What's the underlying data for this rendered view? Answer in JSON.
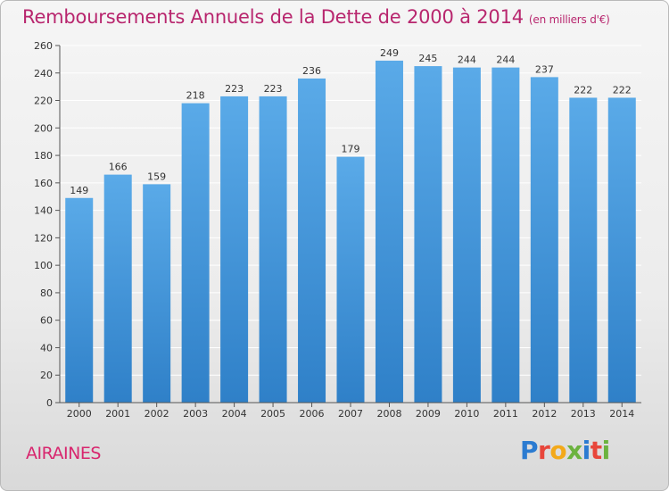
{
  "header": {
    "title": "Remboursements Annuels de la Dette de 2000 à 2014",
    "subtitle": "(en milliers d'€)"
  },
  "footer": {
    "city": "AIRAINES",
    "logo": [
      "P",
      "r",
      "o",
      "x",
      "i",
      "t",
      "i"
    ],
    "logo_colors": [
      "#2b7bd1",
      "#e8463b",
      "#f3a91a",
      "#6cb33f",
      "#2b7bd1",
      "#e8463b",
      "#6cb33f"
    ]
  },
  "colors": {
    "bar": "#5aaae8",
    "bar_dark": "#2f80c8",
    "axis": "#555555",
    "grid": "#ffffff",
    "text": "#333333"
  },
  "chart_data": {
    "type": "bar",
    "title": "Remboursements Annuels de la Dette de 2000 à 2014",
    "ylabel": "en milliers d'€",
    "xlabel": "",
    "categories": [
      "2000",
      "2001",
      "2002",
      "2003",
      "2004",
      "2005",
      "2006",
      "2007",
      "2008",
      "2009",
      "2010",
      "2011",
      "2012",
      "2013",
      "2014"
    ],
    "values": [
      149,
      166,
      159,
      218,
      223,
      223,
      236,
      179,
      249,
      245,
      244,
      244,
      237,
      222,
      222
    ],
    "ylim": [
      0,
      260
    ],
    "yticks": [
      0,
      20,
      40,
      60,
      80,
      100,
      120,
      140,
      160,
      180,
      200,
      220,
      240,
      260
    ],
    "grid": true
  }
}
